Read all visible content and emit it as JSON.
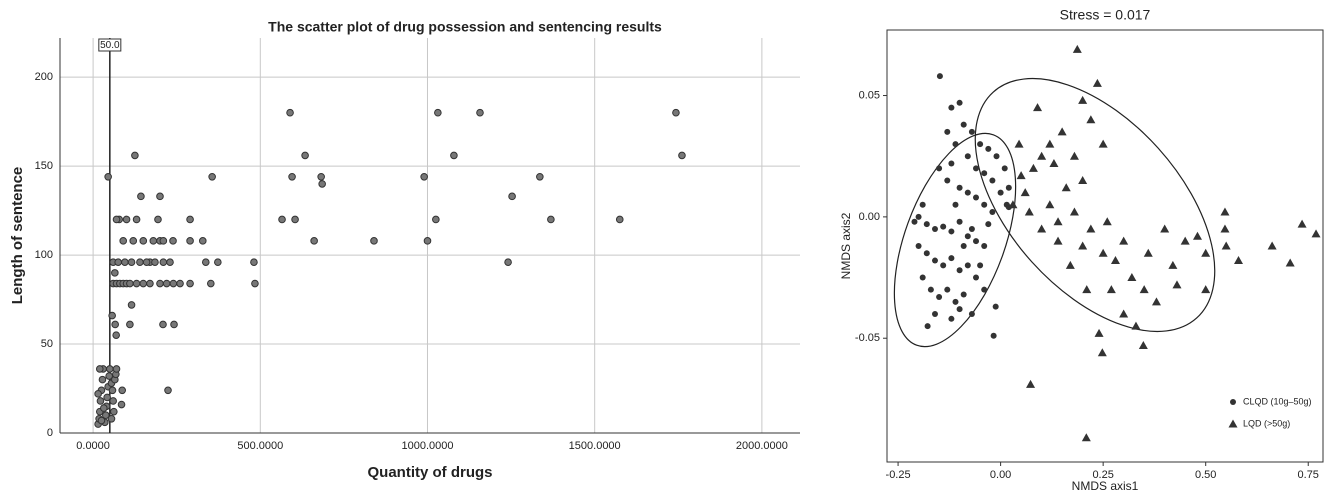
{
  "chart_data": [
    {
      "type": "scatter",
      "title": "The scatter plot of drug possession and sentencing results",
      "x_label": "Quantity of drugs",
      "y_label": "Length of sentence",
      "color": "#777777",
      "grid": true,
      "xlim": [
        -99,
        2114
      ],
      "ylim": [
        0,
        222
      ],
      "xticks": [
        {
          "value": 0,
          "label": "0.0000"
        },
        {
          "value": 500,
          "label": "500.0000"
        },
        {
          "value": 1000,
          "label": "1000.0000"
        },
        {
          "value": 1500,
          "label": "1500.0000"
        },
        {
          "value": 2000,
          "label": "2000.0000"
        }
      ],
      "yticks": [
        0,
        50,
        100,
        150,
        200
      ],
      "refline": {
        "value": 50,
        "label": "50.0"
      },
      "x": [
        589,
        595,
        604,
        565,
        634,
        682,
        685,
        661,
        840,
        990,
        1031,
        1079,
        1025,
        1000,
        1157,
        1253,
        1241,
        1336,
        1369,
        1575,
        1743,
        1761,
        481,
        484,
        356,
        328,
        337,
        352,
        373,
        290,
        290,
        290,
        239,
        200,
        200,
        194,
        209,
        242,
        224,
        125,
        143,
        110,
        78,
        45,
        87,
        170,
        260,
        57,
        66,
        69,
        15,
        18,
        20,
        22,
        25,
        28,
        30,
        35,
        38,
        40,
        42,
        45,
        48,
        50,
        55,
        58,
        60,
        62,
        65,
        68,
        70,
        20,
        25,
        32,
        15,
        55,
        60,
        70,
        80,
        90,
        100,
        110,
        130,
        150,
        170,
        200,
        220,
        240,
        60,
        75,
        95,
        115,
        140,
        160,
        185,
        210,
        230,
        65,
        90,
        120,
        150,
        180,
        210,
        100,
        130,
        70,
        115,
        85
      ],
      "values": [
        180,
        144,
        120,
        120,
        156,
        144,
        140,
        108,
        108,
        144,
        180,
        156,
        120,
        108,
        180,
        133,
        96,
        144,
        120,
        120,
        180,
        156,
        96,
        84,
        144,
        108,
        96,
        84,
        96,
        120,
        108,
        84,
        108,
        133,
        108,
        120,
        61,
        61,
        24,
        156,
        133,
        61,
        120,
        144,
        24,
        96,
        84,
        66,
        61,
        55,
        5,
        8,
        12,
        18,
        24,
        30,
        36,
        6,
        10,
        15,
        20,
        26,
        32,
        36,
        28,
        24,
        18,
        12,
        30,
        33,
        36,
        36,
        7,
        14,
        22,
        8,
        84,
        84,
        84,
        84,
        84,
        84,
        84,
        84,
        84,
        84,
        84,
        84,
        96,
        96,
        96,
        96,
        96,
        96,
        96,
        96,
        96,
        90,
        108,
        108,
        108,
        108,
        108,
        120,
        120,
        120,
        72,
        16
      ]
    },
    {
      "type": "scatter",
      "title": "Stress = 0.017",
      "x_label": "NMDS axis1",
      "y_label": "NMDS axis2",
      "xlim": [
        -0.277,
        0.786
      ],
      "ylim": [
        -0.101,
        0.077
      ],
      "xticks": [
        -0.25,
        {
          "value": 0,
          "label": "0.00"
        },
        0.25,
        {
          "value": 0.5,
          "label": "0.50"
        },
        0.75
      ],
      "yticks": [
        0.05,
        {
          "value": 0,
          "label": "0.00"
        },
        -0.05
      ],
      "legend": "lower right",
      "series": [
        {
          "name": "CLQD (10g–50g)",
          "color": "#333333",
          "marker": "circle",
          "x": [
            -0.148,
            -0.12,
            -0.1,
            -0.09,
            -0.07,
            -0.05,
            -0.03,
            -0.01,
            0.01,
            0.02,
            -0.13,
            -0.11,
            -0.08,
            -0.06,
            -0.04,
            -0.02,
            0,
            0.015,
            -0.15,
            -0.13,
            -0.1,
            -0.08,
            -0.06,
            -0.04,
            -0.02,
            -0.19,
            -0.2,
            -0.21,
            -0.18,
            -0.16,
            -0.14,
            -0.12,
            -0.1,
            -0.08,
            -0.06,
            -0.04,
            -0.2,
            -0.18,
            -0.16,
            -0.14,
            -0.12,
            -0.1,
            -0.08,
            -0.06,
            -0.19,
            -0.17,
            -0.15,
            -0.13,
            -0.11,
            -0.09,
            -0.07,
            -0.178,
            -0.16,
            -0.12,
            -0.1,
            -0.017,
            -0.012,
            -0.04,
            -0.05,
            -0.11,
            -0.09,
            -0.07,
            -0.03,
            -0.12,
            0.02
          ],
          "values": [
            0.058,
            0.045,
            0.047,
            0.038,
            0.035,
            0.03,
            0.028,
            0.025,
            0.02,
            0.012,
            0.035,
            0.03,
            0.025,
            0.02,
            0.018,
            0.015,
            0.01,
            0.005,
            0.02,
            0.015,
            0.012,
            0.01,
            0.008,
            0.005,
            0.002,
            0.005,
            0,
            -0.002,
            -0.003,
            -0.005,
            -0.004,
            -0.006,
            -0.002,
            -0.008,
            -0.01,
            -0.012,
            -0.012,
            -0.015,
            -0.018,
            -0.02,
            -0.017,
            -0.022,
            -0.02,
            -0.025,
            -0.025,
            -0.03,
            -0.033,
            -0.03,
            -0.035,
            -0.032,
            -0.04,
            -0.045,
            -0.04,
            -0.042,
            -0.038,
            -0.049,
            -0.037,
            -0.03,
            -0.02,
            0.005,
            -0.012,
            -0.005,
            -0.003,
            0.022,
            0.004
          ]
        },
        {
          "name": "LQD (>50g)",
          "color": "#333333",
          "marker": "triangle",
          "x": [
            0.187,
            0.236,
            0.073,
            0.209,
            0.735,
            0.769,
            0.706,
            0.662,
            0.547,
            0.547,
            0.348,
            0.248,
            0.2,
            0.22,
            0.15,
            0.12,
            0.1,
            0.08,
            0.13,
            0.18,
            0.25,
            0.2,
            0.16,
            0.05,
            0.06,
            0.03,
            0.07,
            0.12,
            0.14,
            0.18,
            0.22,
            0.26,
            0.3,
            0.28,
            0.25,
            0.2,
            0.17,
            0.14,
            0.32,
            0.35,
            0.38,
            0.3,
            0.24,
            0.42,
            0.45,
            0.4,
            0.48,
            0.5,
            0.43,
            0.36,
            0.27,
            0.21,
            0.33,
            0.55,
            0.58,
            0.5,
            0.1,
            0.045,
            0.09
          ],
          "values": [
            0.069,
            0.055,
            -0.069,
            -0.091,
            -0.003,
            -0.007,
            -0.019,
            -0.012,
            0.002,
            -0.005,
            -0.053,
            -0.056,
            0.048,
            0.04,
            0.035,
            0.03,
            0.025,
            0.02,
            0.022,
            0.025,
            0.03,
            0.015,
            0.012,
            0.017,
            0.01,
            0.005,
            0.002,
            0.005,
            -0.002,
            0.002,
            -0.005,
            -0.002,
            -0.01,
            -0.018,
            -0.015,
            -0.012,
            -0.02,
            -0.01,
            -0.025,
            -0.03,
            -0.035,
            -0.04,
            -0.048,
            -0.02,
            -0.01,
            -0.005,
            -0.008,
            -0.015,
            -0.028,
            -0.015,
            -0.03,
            -0.03,
            -0.045,
            -0.012,
            -0.018,
            -0.03,
            -0.005,
            0.03,
            0.045
          ]
        }
      ]
    }
  ]
}
